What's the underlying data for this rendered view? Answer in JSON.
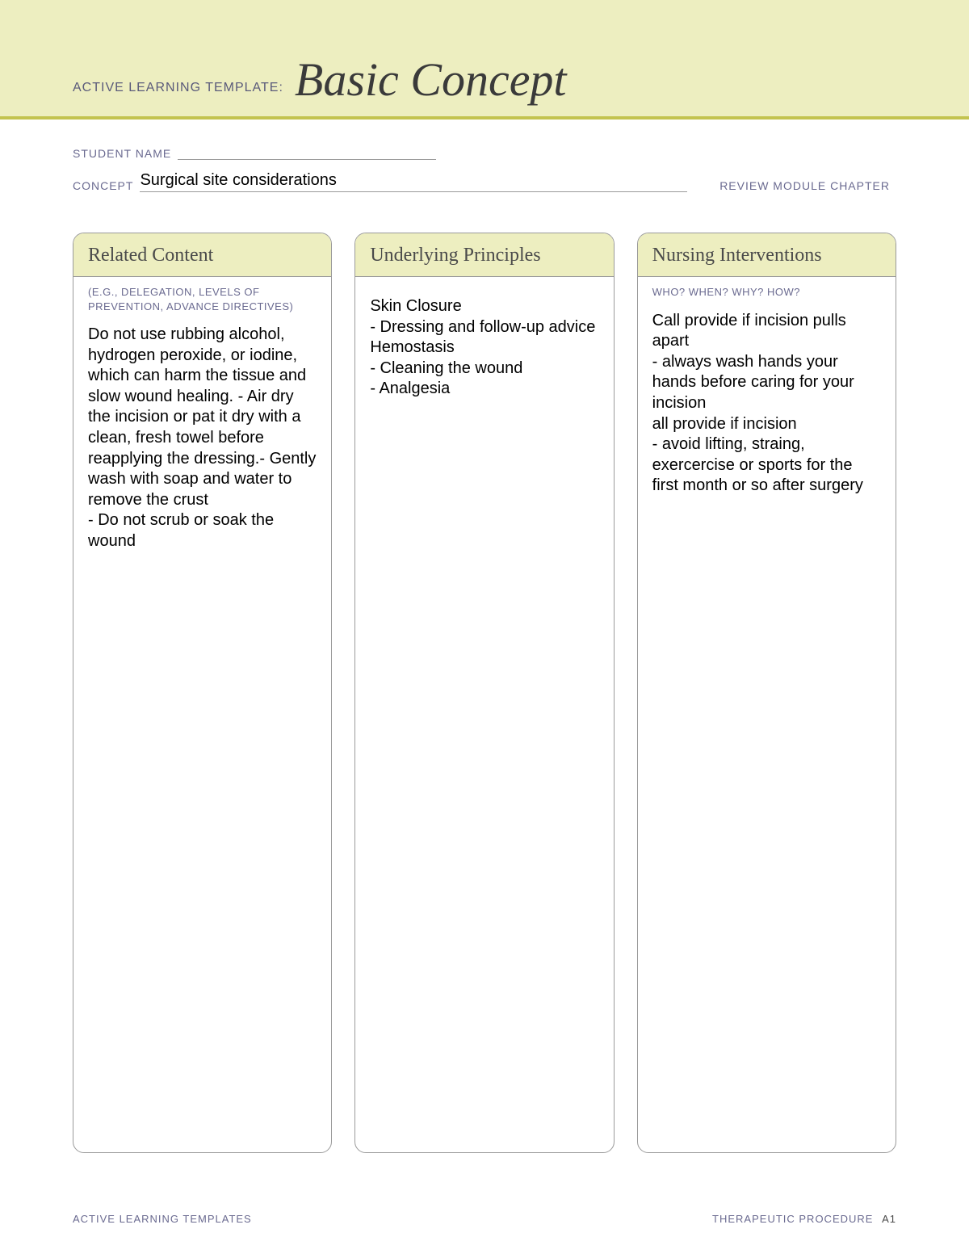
{
  "colors": {
    "banner_bg": "#edeec0",
    "banner_border": "#c3c34f",
    "title_text": "#3a3a3a",
    "label_text": "#6a6a90",
    "body_text": "#000000",
    "box_border": "#9a9a9a",
    "page_bg": "#ffffff"
  },
  "banner": {
    "prefix": "ACTIVE LEARNING TEMPLATE:",
    "title": "Basic Concept"
  },
  "meta": {
    "student_name_label": "STUDENT NAME",
    "student_name_value": "",
    "concept_label": "CONCEPT",
    "concept_value": "Surgical site considerations",
    "review_label": "REVIEW MODULE CHAPTER",
    "review_value": ""
  },
  "columns": [
    {
      "title": "Related Content",
      "subtitle": "(E.G., DELEGATION,\nLEVELS OF PREVENTION,\nADVANCE DIRECTIVES)",
      "body": "Do not use rubbing alcohol, hydrogen peroxide, or iodine, which can harm the tissue and slow wound healing. - Air dry the incision or pat it dry with a clean, fresh towel before reapplying the dressing.- Gently wash with soap and water to remove the crust\n - Do not scrub or soak the wound"
    },
    {
      "title": "Underlying Principles",
      "subtitle": "",
      "body": " Skin Closure\n- Dressing and follow-up advice\nHemostasis\n- Cleaning the wound\n - Analgesia"
    },
    {
      "title": "Nursing Interventions",
      "subtitle": "WHO? WHEN? WHY? HOW?",
      "body": "Call provide if incision pulls apart\n - always wash hands your hands before caring for your incision\nall provide if incision\n -  avoid lifting, straing, exercercise or sports for the first month or so after surgery"
    }
  ],
  "footer": {
    "left": "ACTIVE LEARNING TEMPLATES",
    "right": "THERAPEUTIC PROCEDURE",
    "page": "A1"
  }
}
